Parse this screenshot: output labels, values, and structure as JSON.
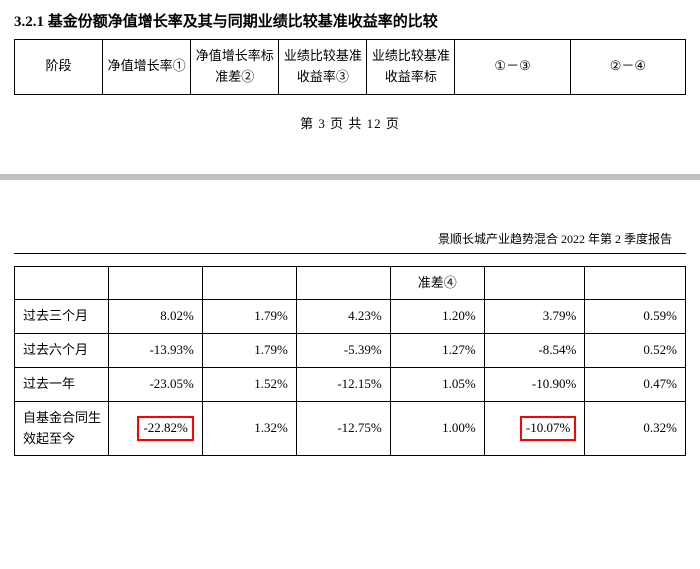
{
  "section_number": "3.2.1",
  "section_title": "基金份额净值增长率及其与同期业绩比较基准收益率的比较",
  "header_table": {
    "columns": [
      "阶段",
      "净值增长率①",
      "净值增长率标准差②",
      "业绩比较基准收益率③",
      "业绩比较基准收益率标",
      "①－③",
      "②－④"
    ]
  },
  "page_indicator_prefix": "第",
  "page_current": "3",
  "page_indicator_mid": "页 共",
  "page_total": "12",
  "page_indicator_suffix": "页",
  "report_header": "景顺长城产业趋势混合 2022 年第 2 季度报告",
  "data_table": {
    "subheader_col4": "准差④",
    "rows": [
      {
        "label": "过去三个月",
        "c1": "8.02%",
        "c2": "1.79%",
        "c3": "4.23%",
        "c4": "1.20%",
        "c5": "3.79%",
        "c6": "0.59%",
        "h1": false,
        "h5": false
      },
      {
        "label": "过去六个月",
        "c1": "-13.93%",
        "c2": "1.79%",
        "c3": "-5.39%",
        "c4": "1.27%",
        "c5": "-8.54%",
        "c6": "0.52%",
        "h1": false,
        "h5": false
      },
      {
        "label": "过去一年",
        "c1": "-23.05%",
        "c2": "1.52%",
        "c3": "-12.15%",
        "c4": "1.05%",
        "c5": "-10.90%",
        "c6": "0.47%",
        "h1": false,
        "h5": false
      },
      {
        "label": "自基金合同生效起至今",
        "c1": "-22.82%",
        "c2": "1.32%",
        "c3": "-12.75%",
        "c4": "1.00%",
        "c5": "-10.07%",
        "c6": "0.32%",
        "h1": true,
        "h5": true
      }
    ]
  },
  "highlight_color": "#ff0000",
  "border_color": "#000000",
  "text_color": "#000000",
  "background_color": "#ffffff"
}
